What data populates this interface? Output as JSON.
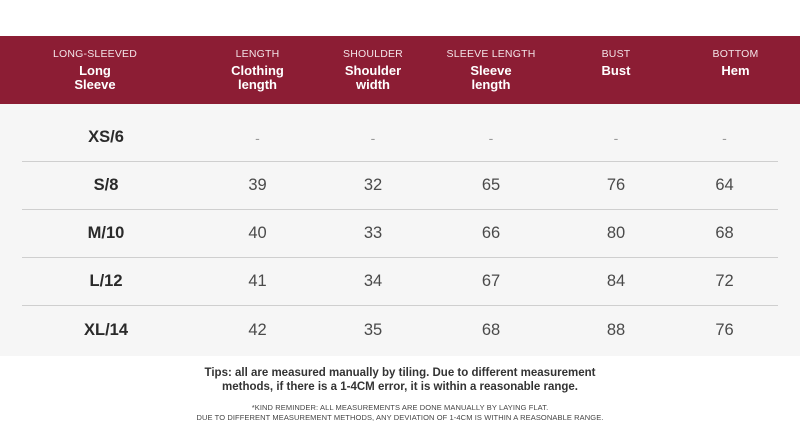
{
  "header": {
    "columns": [
      {
        "en": "LONG-SLEEVED",
        "label": "Long Sleeve"
      },
      {
        "en": "LENGTH",
        "label": "Clothing length"
      },
      {
        "en": "SHOULDER",
        "label": "Shoulder width"
      },
      {
        "en": "SLEEVE LENGTH",
        "label": "Sleeve length"
      },
      {
        "en": "BUST",
        "label": "Bust"
      },
      {
        "en": "BOTTOM",
        "label": "Hem"
      }
    ]
  },
  "rows": [
    {
      "size": "XS/6",
      "values": [
        "-",
        "-",
        "-",
        "-",
        "-"
      ]
    },
    {
      "size": "S/8",
      "values": [
        "39",
        "32",
        "65",
        "76",
        "64"
      ]
    },
    {
      "size": "M/10",
      "values": [
        "40",
        "33",
        "66",
        "80",
        "68"
      ]
    },
    {
      "size": "L/12",
      "values": [
        "41",
        "34",
        "67",
        "84",
        "72"
      ]
    },
    {
      "size": "XL/14",
      "values": [
        "42",
        "35",
        "68",
        "88",
        "76"
      ]
    }
  ],
  "tips": {
    "line1": "Tips: all are measured manually by tiling. Due to different measurement",
    "line2": "methods, if there is a 1-4CM error, it is within a reasonable range."
  },
  "reminder": {
    "line1": "*KIND REMINDER: ALL MEASUREMENTS ARE DONE MANUALLY BY LAYING FLAT.",
    "line2": "DUE TO DIFFERENT MEASUREMENT METHODS, ANY DEVIATION OF 1-4CM IS WITHIN A REASONABLE RANGE."
  },
  "colors": {
    "header_bg": "#8c1d34",
    "table_bg": "#f6f6f6"
  }
}
